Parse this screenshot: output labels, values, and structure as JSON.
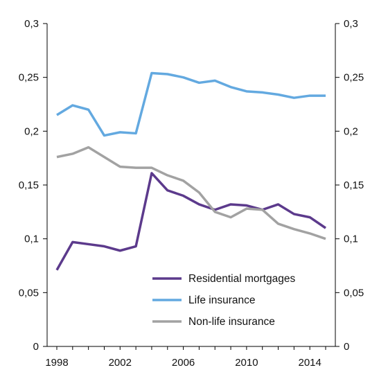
{
  "chart_data": {
    "type": "line",
    "title": "",
    "xlabel": "",
    "ylabel": "",
    "x": [
      1998,
      1999,
      2000,
      2001,
      2002,
      2003,
      2004,
      2005,
      2006,
      2007,
      2008,
      2009,
      2010,
      2011,
      2012,
      2013,
      2014,
      2015
    ],
    "xlim": [
      1998,
      2015
    ],
    "x_ticks": [
      {
        "value": 1998,
        "label": "1998"
      },
      {
        "value": 2002,
        "label": "2002"
      },
      {
        "value": 2006,
        "label": "2006"
      },
      {
        "value": 2010,
        "label": "2010"
      },
      {
        "value": 2014,
        "label": "2014"
      }
    ],
    "ylim": [
      0,
      0.3
    ],
    "y_ticks": [
      {
        "value": 0,
        "label": "0"
      },
      {
        "value": 0.05,
        "label": "0,05"
      },
      {
        "value": 0.1,
        "label": "0,1"
      },
      {
        "value": 0.15,
        "label": "0,15"
      },
      {
        "value": 0.2,
        "label": "0,2"
      },
      {
        "value": 0.25,
        "label": "0,25"
      },
      {
        "value": 0.3,
        "label": "0,3"
      }
    ],
    "dual_y_axis": true,
    "grid": false,
    "legend_position": "bottom-right",
    "series": [
      {
        "name": "Residential mortgages",
        "color": "#5c3a8c",
        "values": [
          0.071,
          0.097,
          0.095,
          0.093,
          0.089,
          0.093,
          0.161,
          0.145,
          0.14,
          0.132,
          0.127,
          0.132,
          0.131,
          0.127,
          0.132,
          0.123,
          0.12,
          0.11
        ]
      },
      {
        "name": "Life insurance",
        "color": "#63a9e0",
        "values": [
          0.215,
          0.224,
          0.22,
          0.196,
          0.199,
          0.198,
          0.254,
          0.253,
          0.25,
          0.245,
          0.247,
          0.241,
          0.237,
          0.236,
          0.234,
          0.231,
          0.233,
          0.233
        ]
      },
      {
        "name": "Non-life insurance",
        "color": "#a2a2a2",
        "values": [
          0.176,
          0.179,
          0.185,
          0.176,
          0.167,
          0.166,
          0.166,
          0.159,
          0.154,
          0.143,
          0.125,
          0.12,
          0.128,
          0.127,
          0.114,
          0.109,
          0.105,
          0.1
        ]
      }
    ]
  }
}
